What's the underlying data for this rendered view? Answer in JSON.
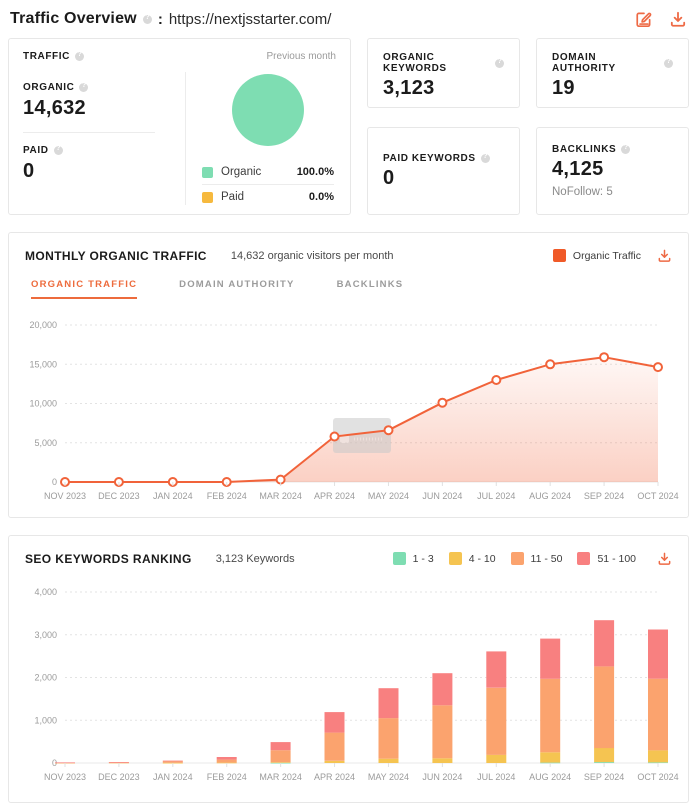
{
  "header": {
    "title": "Traffic Overview",
    "separator": ":",
    "url": "https://nextjsstarter.com/"
  },
  "colors": {
    "accent_orange": "#ee6a45",
    "legend_orange": "#f05a28",
    "line_orange": "#f1633a",
    "green": "#7eddb2",
    "yellow": "#f5c451",
    "salmon": "#fba36e",
    "red": "#f88080"
  },
  "traffic_card": {
    "title": "TRAFFIC",
    "previous_month": "Previous month",
    "organic_label": "ORGANIC",
    "organic_value": "14,632",
    "paid_label": "PAID",
    "paid_value": "0",
    "pie": {
      "organic_pct": 100.0,
      "paid_pct": 0.0,
      "color": "#7eddb2"
    },
    "legend": [
      {
        "label": "Organic",
        "value": "100.0%",
        "color": "#7eddb2"
      },
      {
        "label": "Paid",
        "value": "0.0%",
        "color": "#f6b93e"
      }
    ]
  },
  "stat_cards": [
    {
      "label": "ORGANIC KEYWORDS",
      "value": "3,123"
    },
    {
      "label": "DOMAIN AUTHORITY",
      "value": "19"
    },
    {
      "label": "PAID KEYWORDS",
      "value": "0"
    },
    {
      "label": "BACKLINKS",
      "value": "4,125",
      "sub": "NoFollow: 5"
    }
  ],
  "monthly_section": {
    "title": "MONTHLY ORGANIC TRAFFIC",
    "subtitle": "14,632 organic visitors per month",
    "legend_label": "Organic Traffic",
    "legend_color": "#f05a28",
    "tabs": [
      {
        "label": "ORGANIC TRAFFIC"
      },
      {
        "label": "DOMAIN AUTHORITY"
      },
      {
        "label": "BACKLINKS"
      }
    ]
  },
  "seo_section": {
    "title": "SEO KEYWORDS RANKING",
    "subtitle": "3,123 Keywords",
    "legend": [
      {
        "label": "1 - 3",
        "color": "#7eddb2"
      },
      {
        "label": "4 - 10",
        "color": "#f5c451"
      },
      {
        "label": "11 - 50",
        "color": "#fba36e"
      },
      {
        "label": "51 - 100",
        "color": "#f88080"
      }
    ]
  },
  "chart_data": [
    {
      "type": "line",
      "title": "Monthly Organic Traffic",
      "x": [
        "NOV 2023",
        "DEC 2023",
        "JAN 2024",
        "FEB 2024",
        "MAR 2024",
        "APR 2024",
        "MAY 2024",
        "JUN 2024",
        "JUL 2024",
        "AUG 2024",
        "SEP 2024",
        "OCT 2024"
      ],
      "series": [
        {
          "name": "Organic Traffic",
          "values": [
            0,
            0,
            0,
            0,
            300,
            5800,
            6600,
            10100,
            13000,
            15000,
            15900,
            14632
          ]
        }
      ],
      "ylabel": "",
      "xlabel": "",
      "ylim": [
        0,
        20000
      ],
      "yticks": [
        0,
        5000,
        10000,
        15000,
        20000
      ],
      "grid": "dotted-horizontal",
      "line_color": "#f1633a",
      "area_fill": true,
      "tooltip_ghost": true,
      "legend_position": "top-right"
    },
    {
      "type": "bar",
      "stacked": true,
      "title": "SEO Keywords Ranking",
      "categories": [
        "NOV 2023",
        "DEC 2023",
        "JAN 2024",
        "FEB 2024",
        "MAR 2024",
        "APR 2024",
        "MAY 2024",
        "JUN 2024",
        "JUL 2024",
        "AUG 2024",
        "SEP 2024",
        "OCT 2024"
      ],
      "series": [
        {
          "name": "1 - 3",
          "color": "#7eddb2",
          "values": [
            0,
            0,
            0,
            0,
            5,
            0,
            0,
            0,
            0,
            10,
            20,
            15
          ]
        },
        {
          "name": "4 - 10",
          "color": "#f5c451",
          "values": [
            8,
            10,
            5,
            10,
            15,
            50,
            100,
            110,
            190,
            240,
            330,
            280
          ]
        },
        {
          "name": "11 - 50",
          "color": "#fba36e",
          "values": [
            4,
            5,
            40,
            70,
            280,
            660,
            950,
            1240,
            1570,
            1720,
            1910,
            1678
          ]
        },
        {
          "name": "51 - 100",
          "color": "#f88080",
          "values": [
            3,
            5,
            10,
            60,
            190,
            480,
            700,
            750,
            850,
            940,
            1080,
            1150
          ]
        }
      ],
      "ylabel": "",
      "xlabel": "",
      "ylim": [
        0,
        4000
      ],
      "yticks": [
        0,
        1000,
        2000,
        3000,
        4000
      ],
      "grid": "dotted-horizontal",
      "legend_position": "top-right"
    }
  ]
}
